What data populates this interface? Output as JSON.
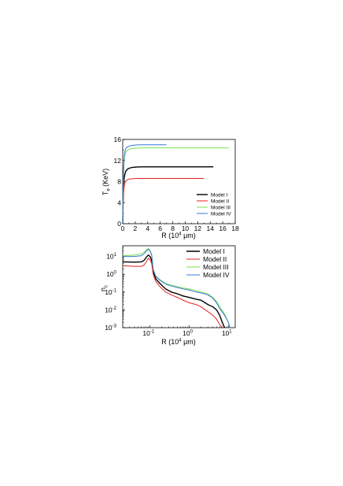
{
  "colors": {
    "model1": "#000000",
    "model2": "#e8211c",
    "model3": "#78e04a",
    "model4": "#3a78d8"
  },
  "chart_data": [
    {
      "type": "line",
      "xlabel_main": "R (10",
      "xlabel_sup": "4",
      "xlabel_end": " μm)",
      "ylabel_main": "T",
      "ylabel_sub": "e",
      "ylabel_end": " (KeV)",
      "xlim": [
        0,
        18
      ],
      "ylim": [
        0,
        16
      ],
      "xticks": [
        0,
        2,
        4,
        6,
        8,
        10,
        12,
        14,
        16,
        18
      ],
      "yticks": [
        0,
        4,
        8,
        12,
        16
      ],
      "legend_position": "lower-right",
      "series": [
        {
          "name": "Model I",
          "color_key": "model1",
          "x": [
            0,
            0.05,
            0.1,
            0.2,
            0.3,
            0.5,
            0.8,
            1.2,
            1.6,
            2.2,
            3,
            4,
            6,
            10,
            14.5
          ],
          "y": [
            0,
            3.5,
            6.0,
            8.2,
            9.2,
            10.0,
            10.4,
            10.6,
            10.7,
            10.75,
            10.8,
            10.8,
            10.8,
            10.8,
            10.8
          ]
        },
        {
          "name": "Model II",
          "color_key": "model2",
          "x": [
            0,
            0.05,
            0.1,
            0.2,
            0.3,
            0.5,
            0.8,
            1.2,
            1.6,
            2.2,
            3,
            4,
            6,
            10,
            13
          ],
          "y": [
            0,
            3.0,
            5.0,
            6.8,
            7.6,
            8.1,
            8.4,
            8.5,
            8.55,
            8.6,
            8.6,
            8.6,
            8.6,
            8.6,
            8.6
          ]
        },
        {
          "name": "Model III",
          "color_key": "model3",
          "x": [
            0,
            0.05,
            0.1,
            0.2,
            0.3,
            0.5,
            0.8,
            1.2,
            1.6,
            2.2,
            3,
            4,
            6,
            10,
            14,
            17
          ],
          "y": [
            0,
            5.0,
            8.5,
            11.5,
            12.8,
            13.6,
            14.0,
            14.2,
            14.3,
            14.35,
            14.4,
            14.4,
            14.4,
            14.4,
            14.4,
            14.4
          ]
        },
        {
          "name": "Model IV",
          "color_key": "model4",
          "x": [
            0,
            0.05,
            0.1,
            0.2,
            0.3,
            0.5,
            0.8,
            1.2,
            1.6,
            2.2,
            3,
            4,
            5,
            6,
            7
          ],
          "y": [
            0,
            5.5,
            9.0,
            12.0,
            13.5,
            14.3,
            14.6,
            14.8,
            14.9,
            14.95,
            15.0,
            15.0,
            15.0,
            15.0,
            15.0
          ]
        }
      ]
    },
    {
      "type": "line",
      "xscale": "log",
      "yscale": "log",
      "xlabel_main": "R (10",
      "xlabel_sup": "4",
      "xlabel_end": " μm)",
      "ylabel_main": "n",
      "ylabel_sub": "c",
      "ylabel_end": "",
      "xlim": [
        0.02,
        15
      ],
      "ylim": [
        0.001,
        40
      ],
      "xticks": [
        {
          "value": 0.1,
          "base": "10",
          "exp": "-1"
        },
        {
          "value": 1,
          "base": "10",
          "exp": "0"
        },
        {
          "value": 10,
          "base": "10",
          "exp": "1"
        }
      ],
      "yticks": [
        {
          "value": 0.001,
          "base": "10",
          "exp": "-3"
        },
        {
          "value": 0.01,
          "base": "10",
          "exp": "-2"
        },
        {
          "value": 0.1,
          "base": "10",
          "exp": "-1"
        },
        {
          "value": 1,
          "base": "10",
          "exp": "0"
        },
        {
          "value": 10,
          "base": "10",
          "exp": "1"
        }
      ],
      "legend_position": "top-right",
      "series": [
        {
          "name": "Model I",
          "color_key": "model1",
          "x": [
            0.02,
            0.04,
            0.06,
            0.07,
            0.08,
            0.09,
            0.1,
            0.11,
            0.12,
            0.14,
            0.18,
            0.25,
            0.35,
            0.5,
            0.7,
            1,
            1.5,
            2,
            3,
            4,
            5,
            6,
            7,
            8
          ],
          "y": [
            5,
            4.8,
            5.0,
            6.0,
            9.0,
            12.0,
            10.0,
            6.0,
            1.5,
            0.55,
            0.3,
            0.15,
            0.1,
            0.08,
            0.06,
            0.05,
            0.04,
            0.035,
            0.02,
            0.015,
            0.01,
            0.005,
            0.002,
            0.001
          ]
        },
        {
          "name": "Model II",
          "color_key": "model2",
          "x": [
            0.02,
            0.04,
            0.06,
            0.07,
            0.08,
            0.09,
            0.1,
            0.11,
            0.12,
            0.14,
            0.18,
            0.25,
            0.35,
            0.5,
            0.7,
            1,
            1.5,
            2,
            3,
            4,
            5,
            6,
            7
          ],
          "y": [
            3,
            2.8,
            2.8,
            3.3,
            5.0,
            8.0,
            6.5,
            4.0,
            1.0,
            0.4,
            0.2,
            0.1,
            0.07,
            0.05,
            0.035,
            0.025,
            0.02,
            0.015,
            0.008,
            0.005,
            0.003,
            0.0015,
            0.001
          ]
        },
        {
          "name": "Model III",
          "color_key": "model3",
          "x": [
            0.02,
            0.04,
            0.06,
            0.07,
            0.08,
            0.09,
            0.1,
            0.11,
            0.12,
            0.14,
            0.18,
            0.25,
            0.35,
            0.5,
            0.7,
            1,
            1.5,
            2,
            3,
            4,
            5,
            6,
            8,
            10,
            11
          ],
          "y": [
            11,
            12,
            14,
            17,
            23,
            28,
            22,
            13,
            2.0,
            0.8,
            0.5,
            0.3,
            0.25,
            0.2,
            0.17,
            0.15,
            0.12,
            0.1,
            0.08,
            0.05,
            0.03,
            0.015,
            0.006,
            0.002,
            0.001
          ]
        },
        {
          "name": "Model IV",
          "color_key": "model4",
          "x": [
            0.02,
            0.04,
            0.06,
            0.07,
            0.08,
            0.09,
            0.1,
            0.11,
            0.12,
            0.14,
            0.18,
            0.25,
            0.35,
            0.5,
            0.7,
            1,
            1.5,
            2,
            3,
            4,
            5,
            6,
            8,
            10,
            11
          ],
          "y": [
            10,
            10,
            11,
            14,
            20,
            26,
            20,
            12,
            1.8,
            0.75,
            0.45,
            0.28,
            0.22,
            0.18,
            0.15,
            0.13,
            0.1,
            0.09,
            0.07,
            0.045,
            0.025,
            0.012,
            0.005,
            0.002,
            0.001
          ]
        }
      ]
    }
  ]
}
